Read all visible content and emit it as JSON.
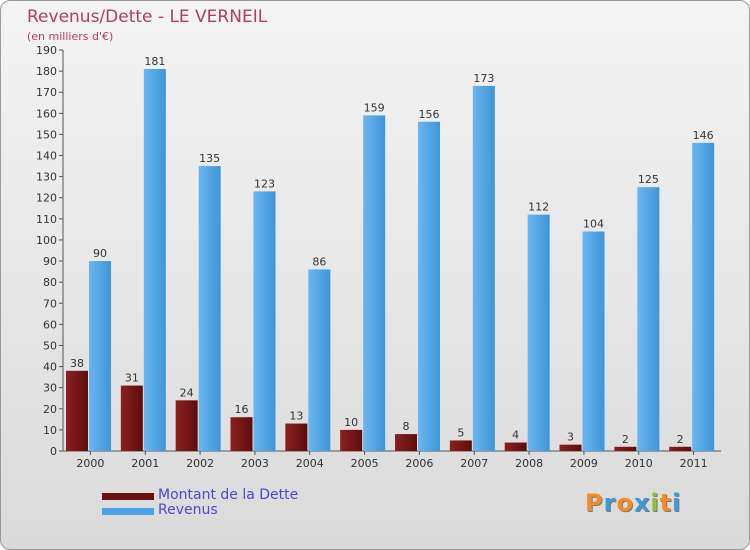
{
  "chart_data": {
    "type": "bar",
    "title": "Revenus/Dette - LE VERNEIL",
    "subtitle": "(en milliers d'€)",
    "categories": [
      "2000",
      "2001",
      "2002",
      "2003",
      "2004",
      "2005",
      "2006",
      "2007",
      "2008",
      "2009",
      "2010",
      "2011"
    ],
    "series": [
      {
        "name": "Montant de la Dette",
        "color": "#7a1515",
        "values": [
          38,
          31,
          24,
          16,
          13,
          10,
          8,
          5,
          4,
          3,
          2,
          2
        ]
      },
      {
        "name": "Revenus",
        "color": "#4ba3e6",
        "values": [
          90,
          181,
          135,
          123,
          86,
          159,
          156,
          173,
          112,
          104,
          125,
          146
        ]
      }
    ],
    "ylim": [
      0,
      190
    ],
    "yticks": [
      0,
      10,
      20,
      30,
      40,
      50,
      60,
      70,
      80,
      90,
      100,
      110,
      120,
      130,
      140,
      150,
      160,
      170,
      180,
      190
    ],
    "grid": false,
    "legend_position": "bottom-left"
  },
  "logo": {
    "letters": [
      "P",
      "r",
      "o",
      "x",
      "i",
      "t",
      "i"
    ],
    "colors": [
      "#f08c2a",
      "#3c9ad6",
      "#f08c2a",
      "#3c9ad6",
      "#8cc23f",
      "#f08c2a",
      "#3c9ad6"
    ]
  }
}
